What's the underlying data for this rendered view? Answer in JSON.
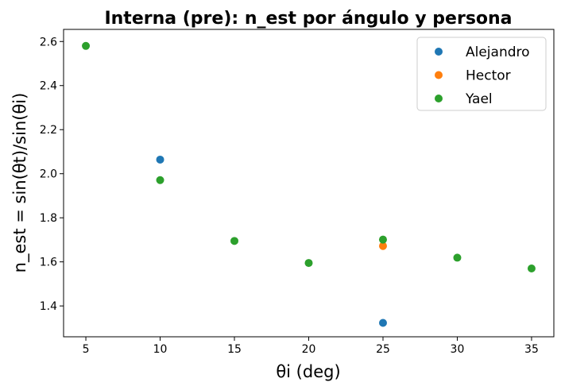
{
  "chart_data": {
    "type": "scatter",
    "title": "Interna (pre): n_est por ángulo y persona",
    "xlabel": "θi (deg)",
    "ylabel": "n_est = sin(θt)/sin(θi)",
    "xlim": [
      3.5,
      36.5
    ],
    "ylim": [
      1.26,
      2.655
    ],
    "xticks": [
      5,
      10,
      15,
      20,
      25,
      30,
      35
    ],
    "yticks": [
      1.4,
      1.6,
      1.8,
      2.0,
      2.2,
      2.4,
      2.6
    ],
    "ytick_labels": [
      "1.4",
      "1.6",
      "1.8",
      "2.0",
      "2.2",
      "2.4",
      "2.6"
    ],
    "grid": false,
    "legend_position": "top-right",
    "series": [
      {
        "name": "Alejandro",
        "color": "#1f77b4",
        "points": [
          [
            10,
            2.064
          ],
          [
            25,
            1.323
          ]
        ]
      },
      {
        "name": "Hector",
        "color": "#ff7f0e",
        "points": [
          [
            25,
            1.672
          ]
        ]
      },
      {
        "name": "Yael",
        "color": "#2ca02c",
        "points": [
          [
            5,
            2.58
          ],
          [
            10,
            1.971
          ],
          [
            15,
            1.695
          ],
          [
            20,
            1.595
          ],
          [
            25,
            1.701
          ],
          [
            30,
            1.619
          ],
          [
            35,
            1.57
          ]
        ]
      }
    ]
  }
}
